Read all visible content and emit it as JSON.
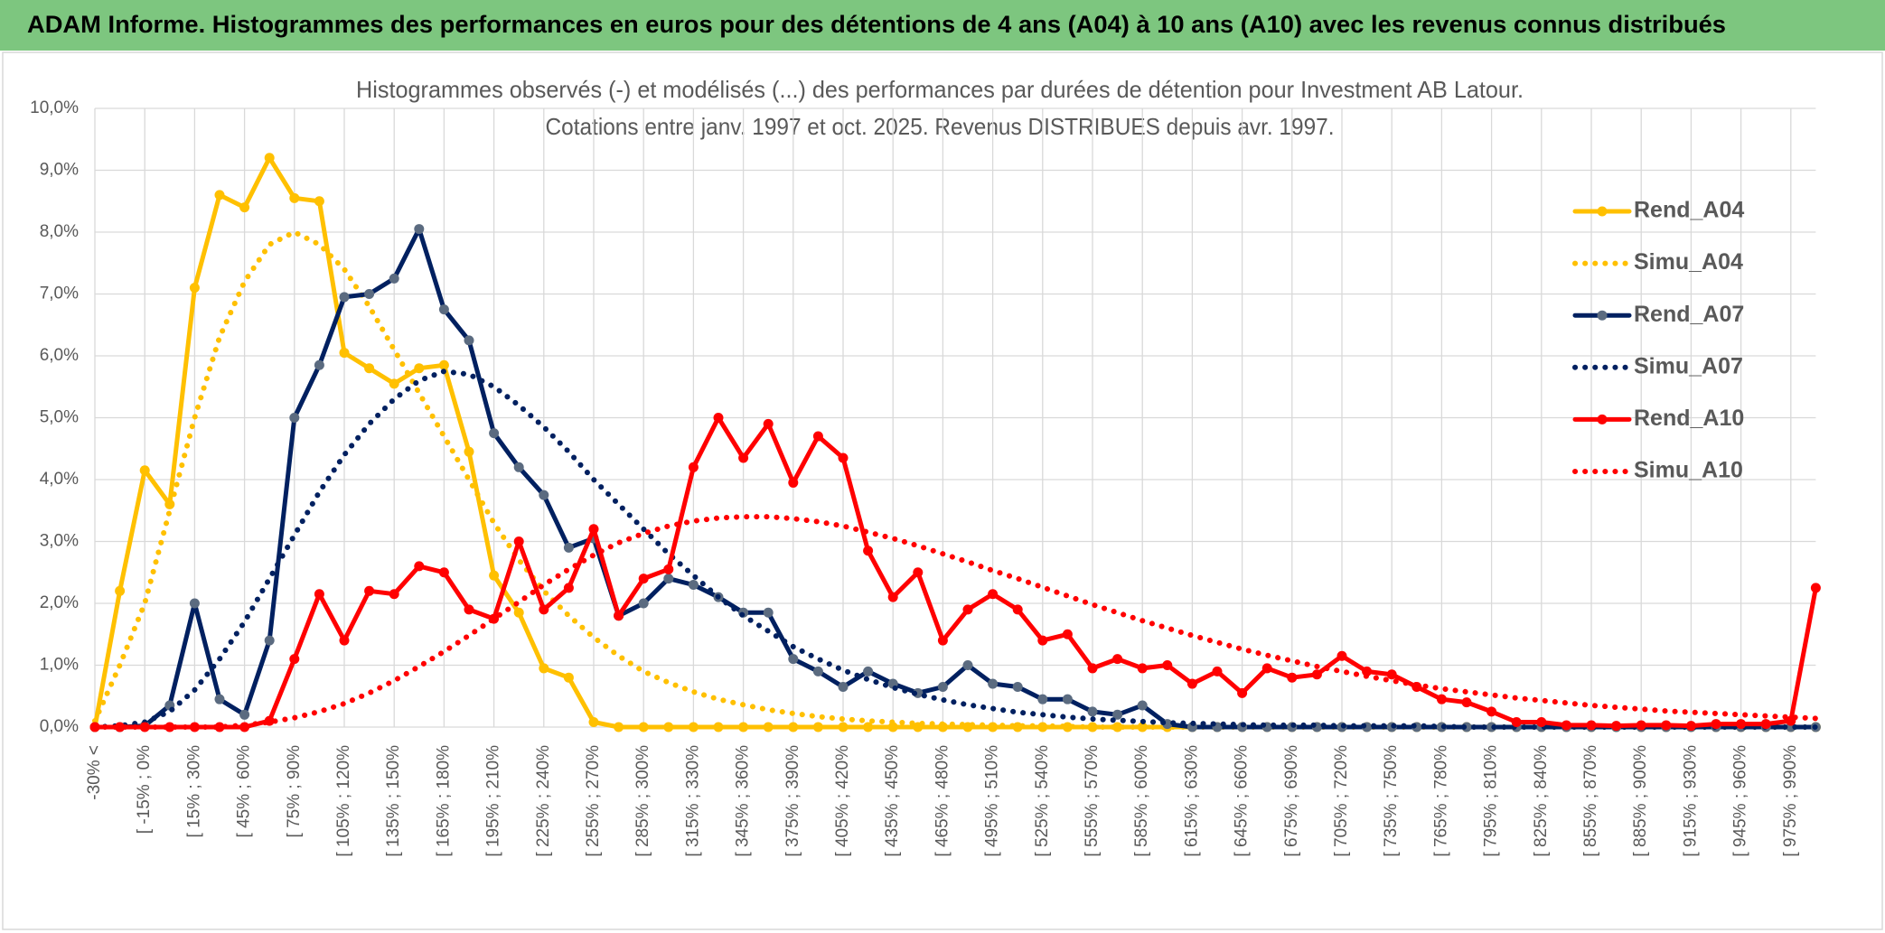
{
  "chart_data": {
    "type": "line",
    "title": "ADAM Informe. Histogrammes des performances en euros pour des détentions de 4 ans (A04) à 10 ans (A10) avec les revenus connus distribués",
    "subtitle": [
      "Histogrammes observés (-) et modélisés (...) des performances par durées de détention pour Investment AB Latour.",
      "Cotations entre janv. 1997 et oct. 2025. Revenus DISTRIBUES depuis avr. 1997."
    ],
    "categories": [
      "-30% <",
      null,
      "[ -15% ; 0%",
      null,
      "[ 15% ; 30%",
      null,
      "[ 45% ; 60%",
      null,
      "[ 75% ; 90%",
      null,
      "[ 105% ; 120%",
      null,
      "[ 135% ; 150%",
      null,
      "[ 165% ; 180%",
      null,
      "[ 195% ; 210%",
      null,
      "[ 225% ; 240%",
      null,
      "[ 255% ; 270%",
      null,
      "[ 285% ; 300%",
      null,
      "[ 315% ; 330%",
      null,
      "[ 345% ; 360%",
      null,
      "[ 375% ; 390%",
      null,
      "[ 405% ; 420%",
      null,
      "[ 435% ; 450%",
      null,
      "[ 465% ; 480%",
      null,
      "[ 495% ; 510%",
      null,
      "[ 525% ; 540%",
      null,
      "[ 555% ; 570%",
      null,
      "[ 585% ; 600%",
      null,
      "[ 615% ; 630%",
      null,
      "[ 645% ; 660%",
      null,
      "[ 675% ; 690%",
      null,
      "[ 705% ; 720%",
      null,
      "[ 735% ; 750%",
      null,
      "[ 765% ; 780%",
      null,
      "[ 795% ; 810%",
      null,
      "[ 825% ; 840%",
      null,
      "[ 855% ; 870%",
      null,
      "[ 885% ; 900%",
      null,
      "[ 915% ; 930%",
      null,
      "[ 945% ; 960%",
      null,
      "[ 975% ; 990%",
      null
    ],
    "series": [
      {
        "name": "Rend_A04",
        "color": "#FFC000",
        "style": "solid",
        "marker_color": "#FFC000",
        "values": [
          0,
          2.2,
          4.15,
          3.6,
          7.1,
          8.6,
          8.4,
          9.2,
          8.55,
          8.5,
          6.05,
          5.8,
          5.55,
          5.8,
          5.85,
          4.45,
          2.45,
          1.85,
          0.95,
          0.8,
          0.08,
          0,
          0,
          0,
          0,
          0,
          0,
          0,
          0,
          0,
          0,
          0,
          0,
          0,
          0,
          0,
          0,
          0,
          0,
          0,
          0,
          0,
          0,
          0,
          0,
          0,
          0,
          0,
          0,
          0,
          0,
          0,
          0,
          0,
          0,
          0,
          0,
          0,
          0,
          0,
          0,
          0,
          0,
          0,
          0,
          0,
          0,
          0,
          0,
          0
        ]
      },
      {
        "name": "Simu_A04",
        "color": "#FFC000",
        "style": "dotted",
        "values": [
          0.1,
          1.0,
          2.0,
          3.5,
          5.0,
          6.3,
          7.2,
          7.8,
          8.0,
          7.8,
          7.4,
          6.8,
          6.1,
          5.4,
          4.7,
          4.0,
          3.3,
          2.7,
          2.2,
          1.8,
          1.45,
          1.15,
          0.9,
          0.72,
          0.57,
          0.45,
          0.36,
          0.28,
          0.22,
          0.17,
          0.13,
          0.1,
          0.08,
          0.06,
          0.05,
          0.04,
          0.03,
          0.02,
          0.02,
          0.01,
          0,
          0,
          0,
          0,
          0,
          0,
          0,
          0,
          0,
          0,
          0,
          0,
          0,
          0,
          0,
          0,
          0,
          0,
          0,
          0,
          0,
          0,
          0,
          0,
          0,
          0,
          0,
          0,
          0,
          0
        ]
      },
      {
        "name": "Rend_A07",
        "color": "#002060",
        "style": "solid",
        "marker_color": "#5b6b80",
        "values": [
          0,
          0,
          0.02,
          0.35,
          2.0,
          0.45,
          0.2,
          1.4,
          5.0,
          5.85,
          6.95,
          7.0,
          7.25,
          8.05,
          6.75,
          6.25,
          4.75,
          4.2,
          3.75,
          2.9,
          3.05,
          1.8,
          2.0,
          2.4,
          2.3,
          2.1,
          1.85,
          1.85,
          1.1,
          0.9,
          0.65,
          0.9,
          0.7,
          0.55,
          0.65,
          1.0,
          0.7,
          0.65,
          0.45,
          0.45,
          0.25,
          0.2,
          0.35,
          0.05,
          0,
          0,
          0,
          0,
          0,
          0,
          0,
          0,
          0,
          0,
          0,
          0,
          0,
          0,
          0,
          0,
          0,
          0,
          0,
          0,
          0,
          0,
          0,
          0,
          0,
          0
        ]
      },
      {
        "name": "Simu_A07",
        "color": "#002060",
        "style": "dotted",
        "values": [
          0,
          0.02,
          0.08,
          0.25,
          0.6,
          1.1,
          1.7,
          2.4,
          3.1,
          3.8,
          4.4,
          4.9,
          5.3,
          5.6,
          5.75,
          5.7,
          5.5,
          5.2,
          4.85,
          4.45,
          4.0,
          3.6,
          3.2,
          2.8,
          2.45,
          2.1,
          1.8,
          1.55,
          1.3,
          1.1,
          0.92,
          0.77,
          0.64,
          0.53,
          0.44,
          0.36,
          0.3,
          0.24,
          0.2,
          0.16,
          0.13,
          0.11,
          0.09,
          0.07,
          0.06,
          0.05,
          0.04,
          0.03,
          0.03,
          0.03,
          0.02,
          0.02,
          0.02,
          0.02,
          0.01,
          0,
          0,
          0,
          0,
          0,
          0,
          0,
          0,
          0,
          0,
          0,
          0,
          0,
          0,
          0
        ]
      },
      {
        "name": "Rend_A10",
        "color": "#FF0000",
        "style": "solid",
        "marker_color": "#FF0000",
        "values": [
          0,
          0,
          0,
          0,
          0,
          0,
          0,
          0.1,
          1.1,
          2.15,
          1.4,
          2.2,
          2.15,
          2.6,
          2.5,
          1.9,
          1.75,
          3.0,
          1.9,
          2.25,
          3.2,
          1.8,
          2.4,
          2.55,
          4.2,
          5.0,
          4.35,
          4.9,
          3.95,
          4.7,
          4.35,
          2.85,
          2.1,
          2.5,
          1.4,
          1.9,
          2.15,
          1.9,
          1.4,
          1.5,
          0.95,
          1.1,
          0.95,
          1.0,
          0.7,
          0.9,
          0.55,
          0.95,
          0.8,
          0.85,
          1.15,
          0.9,
          0.85,
          0.65,
          0.45,
          0.4,
          0.25,
          0.08,
          0.08,
          0.03,
          0.03,
          0.02,
          0.03,
          0.03,
          0.02,
          0.05,
          0.05,
          0.05,
          0.1,
          2.25
        ]
      },
      {
        "name": "Simu_A10",
        "color": "#FF0000",
        "style": "dotted",
        "values": [
          0,
          0,
          0,
          0,
          0,
          0,
          0.03,
          0.08,
          0.15,
          0.25,
          0.38,
          0.55,
          0.75,
          0.98,
          1.22,
          1.48,
          1.75,
          2.02,
          2.3,
          2.55,
          2.78,
          2.98,
          3.13,
          3.25,
          3.33,
          3.38,
          3.4,
          3.4,
          3.37,
          3.32,
          3.25,
          3.15,
          3.05,
          2.93,
          2.8,
          2.67,
          2.53,
          2.4,
          2.26,
          2.12,
          1.98,
          1.85,
          1.72,
          1.6,
          1.48,
          1.37,
          1.26,
          1.16,
          1.07,
          0.98,
          0.9,
          0.82,
          0.75,
          0.68,
          0.62,
          0.57,
          0.52,
          0.47,
          0.43,
          0.39,
          0.35,
          0.32,
          0.29,
          0.26,
          0.24,
          0.22,
          0.2,
          0.18,
          0.16,
          0.14
        ]
      }
    ],
    "ylim": [
      0,
      10
    ],
    "yticks": [
      {
        "value": 0,
        "label": "0,0%"
      },
      {
        "value": 1,
        "label": "1,0%"
      },
      {
        "value": 2,
        "label": "2,0%"
      },
      {
        "value": 3,
        "label": "3,0%"
      },
      {
        "value": 4,
        "label": "4,0%"
      },
      {
        "value": 5,
        "label": "5,0%"
      },
      {
        "value": 6,
        "label": "6,0%"
      },
      {
        "value": 7,
        "label": "7,0%"
      },
      {
        "value": 8,
        "label": "8,0%"
      },
      {
        "value": 9,
        "label": "9,0%"
      },
      {
        "value": 10,
        "label": "10,0%"
      }
    ],
    "grid": true,
    "legend": "upper right"
  }
}
